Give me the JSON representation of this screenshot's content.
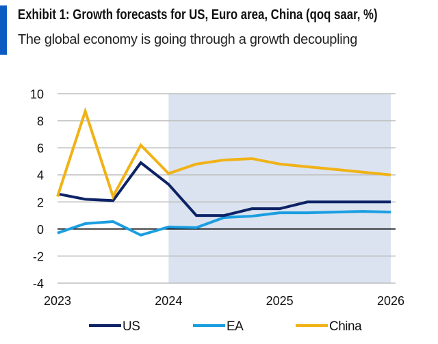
{
  "header": {
    "title": "Exhibit 1: Growth forecasts for US, Euro area, China (qoq saar, %)",
    "subtitle": "The global economy is going through a growth decoupling"
  },
  "chart_data": {
    "type": "line",
    "x": [
      "2023Q1",
      "2023Q2",
      "2023Q3",
      "2023Q4",
      "2024Q1",
      "2024Q2",
      "2024Q3",
      "2024Q4",
      "2025Q1",
      "2025Q2",
      "2025Q3",
      "2025Q4",
      "2026Q1"
    ],
    "x_tick_labels": [
      "2023",
      "2024",
      "2025",
      "2026"
    ],
    "y_tick_labels": [
      "10",
      "8",
      "6",
      "4",
      "2",
      "0",
      "-2",
      "-4"
    ],
    "ylim": [
      -4,
      10
    ],
    "grid": true,
    "forecast_shaded_region": [
      "2024Q1",
      "2026Q1"
    ],
    "shade_color": "#dbe3f0",
    "legend": "bottom",
    "series": [
      {
        "name": "US",
        "color": "#0d2366",
        "values": [
          2.6,
          2.2,
          2.1,
          4.9,
          3.3,
          1.0,
          1.0,
          1.5,
          1.5,
          2.0,
          2.0,
          2.0,
          2.0
        ]
      },
      {
        "name": "EA",
        "color": "#1a9ee0",
        "values": [
          -0.3,
          0.4,
          0.55,
          -0.45,
          0.15,
          0.1,
          0.85,
          0.95,
          1.2,
          1.2,
          1.25,
          1.3,
          1.25
        ]
      },
      {
        "name": "China",
        "color": "#f0b216",
        "values": [
          2.4,
          8.7,
          2.4,
          6.2,
          4.1,
          4.8,
          5.1,
          5.2,
          4.8,
          4.6,
          4.4,
          4.2,
          4.0
        ]
      }
    ]
  }
}
